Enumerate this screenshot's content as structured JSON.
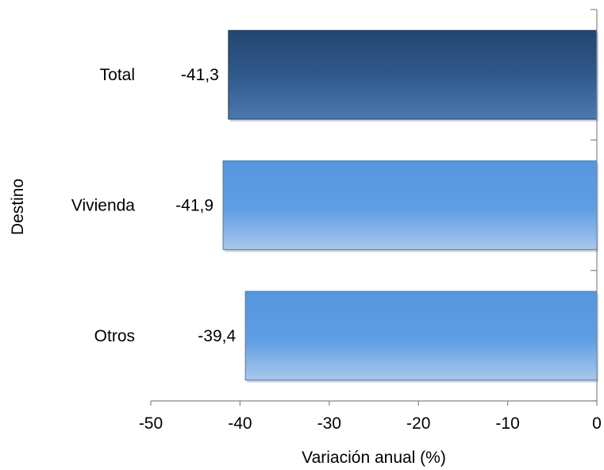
{
  "chart_data": {
    "type": "bar",
    "orientation": "horizontal",
    "categories": [
      "Total",
      "Vivienda",
      "Otros"
    ],
    "values": [
      -41.3,
      -41.9,
      -39.4
    ],
    "data_labels": [
      "-41,3",
      "-41,9",
      "-39,4"
    ],
    "xlabel": "Variación anual (%)",
    "ylabel": "Destino",
    "xlim": [
      -50,
      0
    ],
    "x_ticks": [
      -50,
      -40,
      -30,
      -20,
      -10,
      0
    ],
    "x_tick_labels": [
      "-50",
      "-40",
      "-30",
      "-20",
      "-10",
      "0"
    ],
    "grid": false,
    "legend": "none",
    "bar_colors": [
      "#2f5a8f",
      "#5b9ae0",
      "#5b9ae0"
    ],
    "value_axis_position": "right"
  }
}
